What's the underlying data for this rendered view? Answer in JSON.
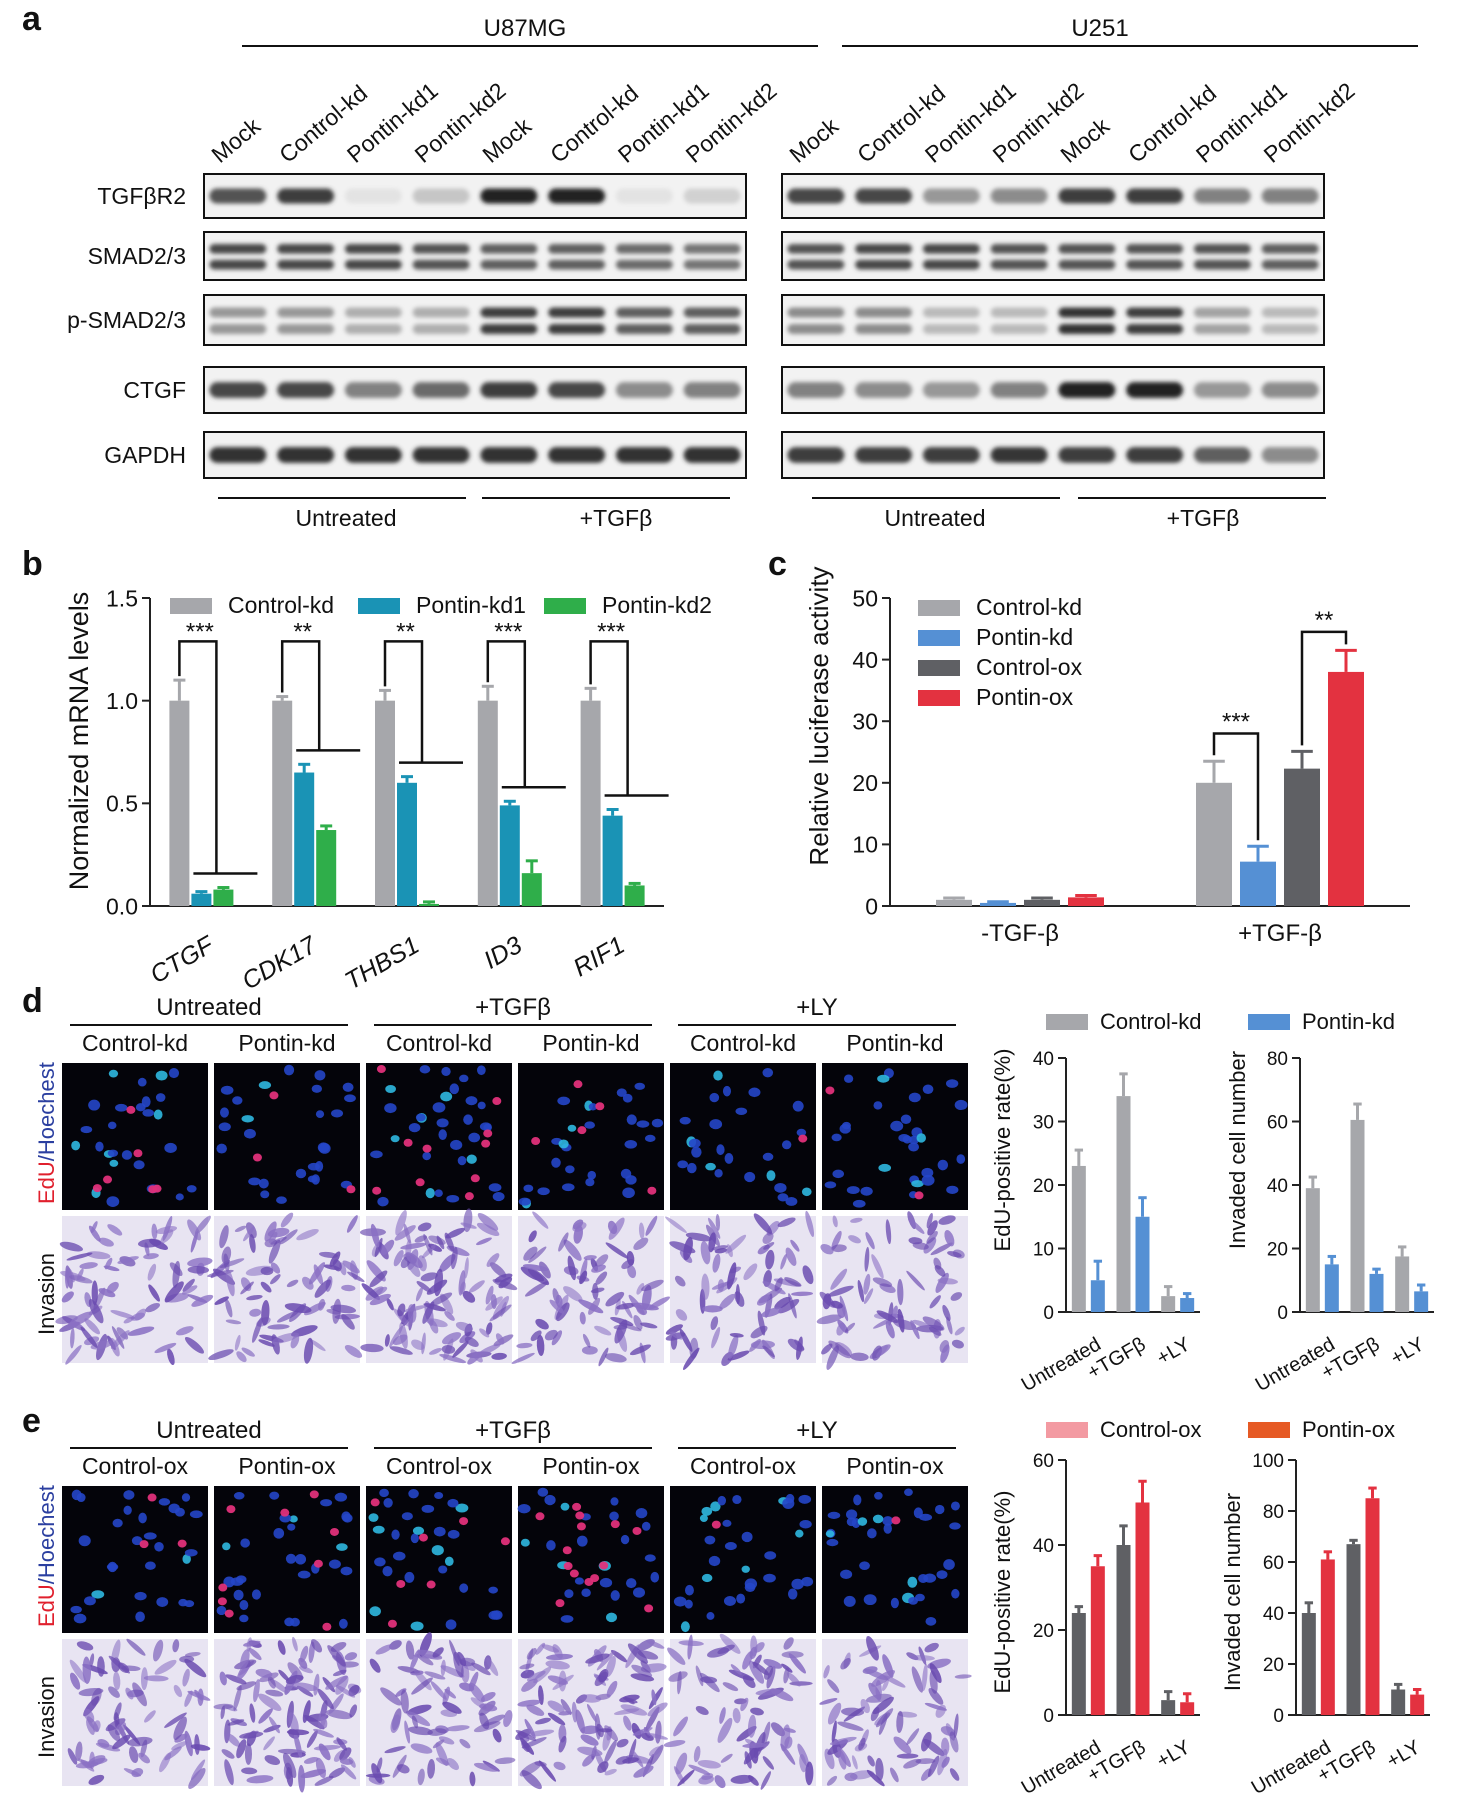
{
  "panels": {
    "a": {
      "letter": "a",
      "cell_lines": [
        "U87MG",
        "U251"
      ],
      "lanes": [
        "Mock",
        "Control-kd",
        "Pontin-kd1",
        "Pontin-kd2",
        "Mock",
        "Control-kd",
        "Pontin-kd1",
        "Pontin-kd2"
      ],
      "proteins": [
        "TGFβR2",
        "SMAD2/3",
        "p-SMAD2/3",
        "CTGF",
        "GAPDH"
      ],
      "treatments": [
        "Untreated",
        "+TGFβ"
      ],
      "band_intensity": {
        "U87MG": [
          [
            0.75,
            0.85,
            0.12,
            0.25,
            0.97,
            0.97,
            0.12,
            0.2
          ],
          [
            0.8,
            0.8,
            0.8,
            0.75,
            0.7,
            0.7,
            0.65,
            0.6
          ],
          [
            0.45,
            0.45,
            0.35,
            0.35,
            0.85,
            0.85,
            0.7,
            0.7
          ],
          [
            0.8,
            0.8,
            0.55,
            0.65,
            0.85,
            0.8,
            0.5,
            0.55
          ],
          [
            0.9,
            0.9,
            0.9,
            0.9,
            0.9,
            0.9,
            0.9,
            0.9
          ]
        ],
        "U251": [
          [
            0.8,
            0.8,
            0.45,
            0.5,
            0.85,
            0.85,
            0.55,
            0.55
          ],
          [
            0.75,
            0.8,
            0.8,
            0.75,
            0.75,
            0.75,
            0.75,
            0.7
          ],
          [
            0.5,
            0.5,
            0.3,
            0.3,
            0.9,
            0.85,
            0.4,
            0.3
          ],
          [
            0.55,
            0.5,
            0.45,
            0.55,
            0.97,
            0.97,
            0.45,
            0.5
          ],
          [
            0.85,
            0.85,
            0.85,
            0.88,
            0.85,
            0.85,
            0.7,
            0.5
          ]
        ]
      }
    },
    "b": {
      "letter": "b",
      "legend": [
        "Control-kd",
        "Pontin-kd1",
        "Pontin-kd2"
      ],
      "sig": [
        "***",
        "**",
        "**",
        "***",
        "***"
      ]
    },
    "c": {
      "letter": "c",
      "legend": [
        "Control-kd",
        "Pontin-kd",
        "Control-ox",
        "Pontin-ox"
      ],
      "sig": [
        "***",
        "**"
      ]
    },
    "d": {
      "letter": "d",
      "groups": [
        "Untreated",
        "+TGFβ",
        "+LY"
      ],
      "columns": [
        "Control-kd",
        "Pontin-kd",
        "Control-kd",
        "Pontin-kd",
        "Control-kd",
        "Pontin-kd"
      ],
      "row_label_edu": "EdU",
      "row_label_sep": "/",
      "row_label_hoechst": "Hoechest",
      "row_label_invasion": "Invasion",
      "legend": [
        "Control-kd",
        "Pontin-kd"
      ]
    },
    "e": {
      "letter": "e",
      "groups": [
        "Untreated",
        "+TGFβ",
        "+LY"
      ],
      "columns": [
        "Control-ox",
        "Pontin-ox",
        "Control-ox",
        "Pontin-ox",
        "Control-ox",
        "Pontin-ox"
      ],
      "row_label_edu": "EdU",
      "row_label_sep": "/",
      "row_label_hoechst": "Hoechest",
      "row_label_invasion": "Invasion",
      "legend": [
        "Control-ox",
        "Pontin-ox"
      ]
    }
  },
  "colors": {
    "grey": "#a6a7ab",
    "teal": "#1a93b5",
    "green": "#2fae4a",
    "blue": "#5590d4",
    "darkgrey": "#5f6064",
    "red": "#e33240",
    "pink": "#f39aa2",
    "orange": "#e65a25",
    "edu_red": "#e0202d",
    "hoechst_blue": "#2b3fa0"
  },
  "chart_data": [
    {
      "id": "b",
      "type": "bar",
      "ylabel": "Normalized mRNA levels",
      "ylim": [
        0,
        1.5
      ],
      "yticks": [
        "0.0",
        "0.5",
        "1.0",
        "1.5"
      ],
      "categories": [
        "CTGF",
        "CDK17",
        "THBS1",
        "ID3",
        "RIF1"
      ],
      "series": [
        {
          "name": "Control-kd",
          "values": [
            1.0,
            1.0,
            1.0,
            1.0,
            1.0
          ],
          "errors": [
            0.1,
            0.02,
            0.05,
            0.07,
            0.06
          ]
        },
        {
          "name": "Pontin-kd1",
          "values": [
            0.06,
            0.65,
            0.6,
            0.49,
            0.44
          ],
          "errors": [
            0.01,
            0.04,
            0.03,
            0.02,
            0.03
          ]
        },
        {
          "name": "Pontin-kd2",
          "values": [
            0.08,
            0.37,
            0.01,
            0.16,
            0.1
          ],
          "errors": [
            0.01,
            0.02,
            0.01,
            0.06,
            0.01
          ]
        }
      ]
    },
    {
      "id": "c",
      "type": "bar",
      "ylabel": "Relative luciferase activity",
      "ylim": [
        0,
        50
      ],
      "yticks": [
        "0",
        "10",
        "20",
        "30",
        "40",
        "50"
      ],
      "categories": [
        "-TGF-β",
        "+TGF-β"
      ],
      "series": [
        {
          "name": "Control-kd",
          "values": [
            1.0,
            20.0
          ],
          "errors": [
            0.3,
            3.5
          ]
        },
        {
          "name": "Pontin-kd",
          "values": [
            0.5,
            7.2
          ],
          "errors": [
            0.2,
            2.5
          ]
        },
        {
          "name": "Control-ox",
          "values": [
            1.0,
            22.3
          ],
          "errors": [
            0.3,
            2.8
          ]
        },
        {
          "name": "Pontin-ox",
          "values": [
            1.4,
            38.0
          ],
          "errors": [
            0.3,
            3.5
          ]
        }
      ]
    },
    {
      "id": "d-edu",
      "type": "bar",
      "ylabel": "EdU-positive rate(%)",
      "ylim": [
        0,
        40
      ],
      "yticks": [
        "0",
        "10",
        "20",
        "30",
        "40"
      ],
      "categories": [
        "Untreated",
        "+TGFβ",
        "+LY"
      ],
      "series": [
        {
          "name": "Control-kd",
          "values": [
            23,
            34,
            2.5
          ],
          "errors": [
            2.5,
            3.5,
            1.5
          ]
        },
        {
          "name": "Pontin-kd",
          "values": [
            5,
            15,
            2.2
          ],
          "errors": [
            3,
            3,
            0.7
          ]
        }
      ]
    },
    {
      "id": "d-inv",
      "type": "bar",
      "ylabel": "Invaded cell number",
      "ylim": [
        0,
        80
      ],
      "yticks": [
        "0",
        "20",
        "40",
        "60",
        "80"
      ],
      "categories": [
        "Untreated",
        "+TGFβ",
        "+LY"
      ],
      "series": [
        {
          "name": "Control-kd",
          "values": [
            39,
            60.5,
            17.5
          ],
          "errors": [
            3.5,
            5,
            3
          ]
        },
        {
          "name": "Pontin-kd",
          "values": [
            15,
            12,
            6.5
          ],
          "errors": [
            2.5,
            1.5,
            2
          ]
        }
      ]
    },
    {
      "id": "e-edu",
      "type": "bar",
      "ylabel": "EdU-positive rate(%)",
      "ylim": [
        0,
        60
      ],
      "yticks": [
        "0",
        "20",
        "40",
        "60"
      ],
      "categories": [
        "Untreated",
        "+TGFβ",
        "+LY"
      ],
      "series": [
        {
          "name": "Control-ox",
          "values": [
            24,
            40,
            3.5
          ],
          "errors": [
            1.5,
            4.5,
            2
          ]
        },
        {
          "name": "Pontin-ox",
          "values": [
            35,
            50,
            3
          ],
          "errors": [
            2.5,
            5,
            2
          ]
        }
      ]
    },
    {
      "id": "e-inv",
      "type": "bar",
      "ylabel": "Invaded cell number",
      "ylim": [
        0,
        100
      ],
      "yticks": [
        "0",
        "20",
        "40",
        "60",
        "80",
        "100"
      ],
      "categories": [
        "Untreated",
        "+TGFβ",
        "+LY"
      ],
      "series": [
        {
          "name": "Control-ox",
          "values": [
            40,
            67,
            10
          ],
          "errors": [
            4,
            1.5,
            2
          ]
        },
        {
          "name": "Pontin-ox",
          "values": [
            61,
            85,
            8
          ],
          "errors": [
            3,
            4,
            2
          ]
        }
      ]
    }
  ]
}
